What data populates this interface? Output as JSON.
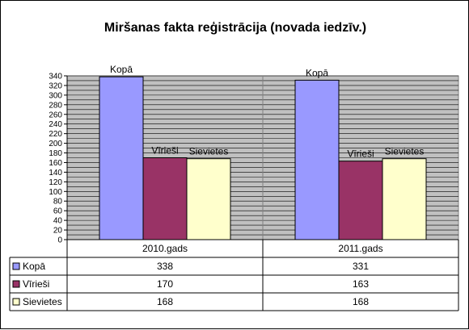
{
  "chart_data": {
    "type": "bar",
    "title": "Miršanas fakta reģistrācija (novada iedzīv.)",
    "categories": [
      "2010.gads",
      "2011.gads"
    ],
    "series": [
      {
        "name": "Kopā",
        "values": [
          338,
          331
        ],
        "color": "#9999FF"
      },
      {
        "name": "Vīrieši",
        "values": [
          170,
          163
        ],
        "color": "#993366"
      },
      {
        "name": "Sievietes",
        "values": [
          168,
          168
        ],
        "color": "#FFFFCC"
      }
    ],
    "ylim": [
      0,
      340
    ],
    "ytick_step": 10,
    "grid": true,
    "plot_background": "#C0C0C0",
    "data_labels": "series-name",
    "data_table": true,
    "table_values": [
      [
        "338",
        "331"
      ],
      [
        "170",
        "163"
      ],
      [
        "168",
        "168"
      ]
    ]
  }
}
